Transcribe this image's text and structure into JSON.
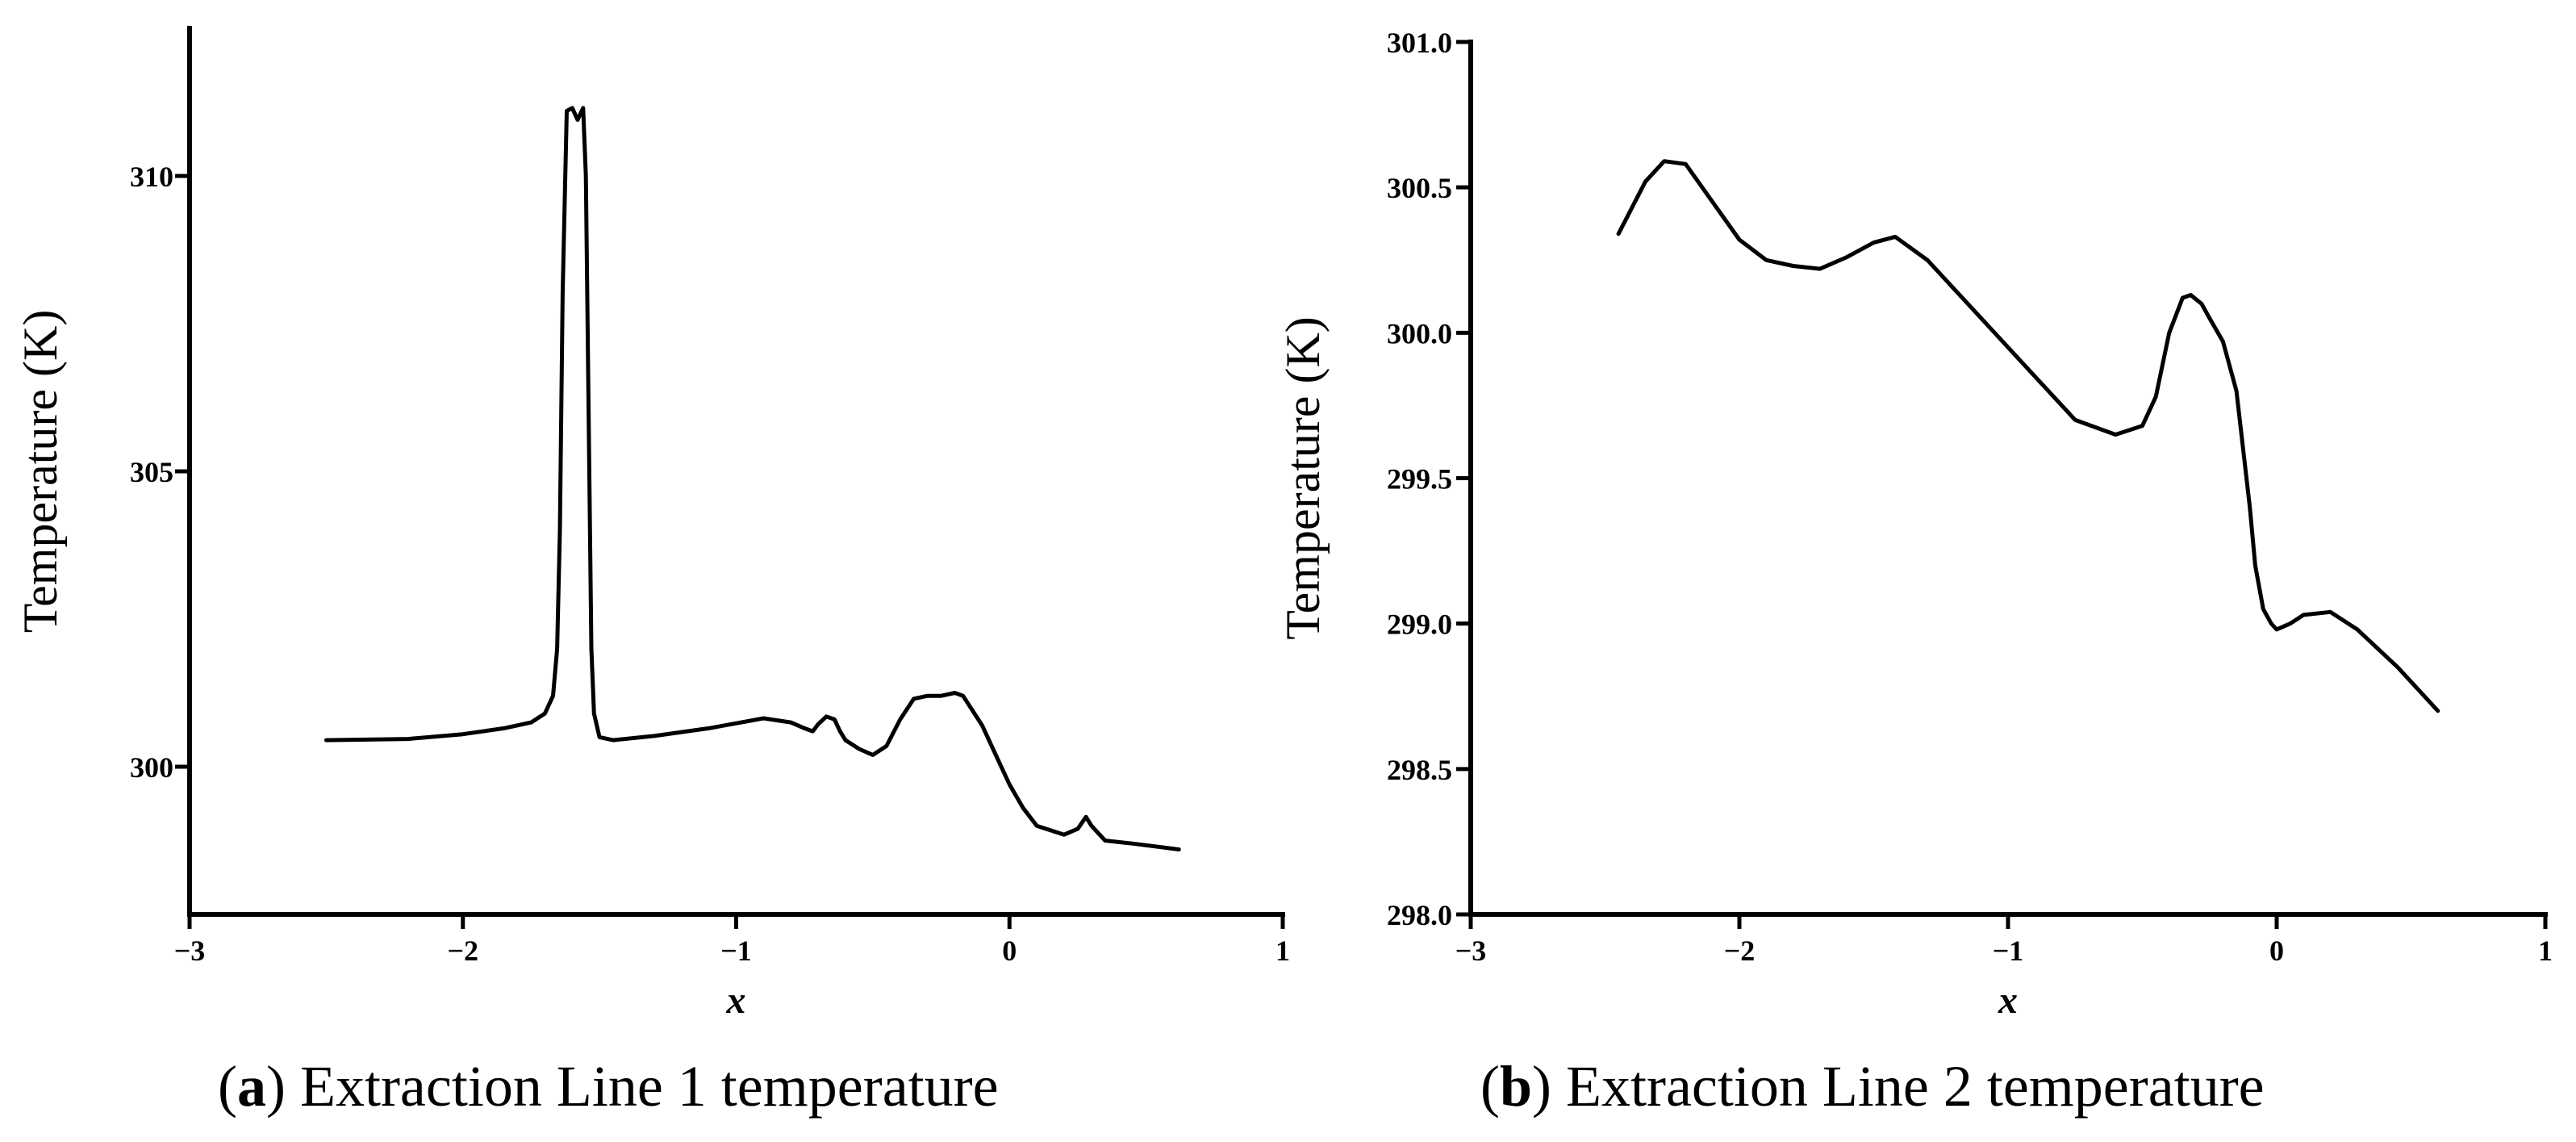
{
  "chart_data": [
    {
      "type": "line",
      "panel_letter": "a",
      "caption": "Extraction Line 1 temperature",
      "xlabel": "x",
      "ylabel": "Temperature (K)",
      "xlim": [
        -3,
        1
      ],
      "ylim": [
        297.5,
        312.5
      ],
      "x_ticks": [
        -3,
        -2,
        -1,
        0,
        1
      ],
      "x_tick_labels": [
        "−3",
        "−2",
        "−1",
        "0",
        "1"
      ],
      "y_ticks": [
        300,
        305,
        310
      ],
      "y_tick_labels": [
        "300",
        "305",
        "310"
      ],
      "grid": false,
      "series": [
        {
          "name": "Line 1",
          "x": [
            -2.5,
            -2.2,
            -2.0,
            -1.85,
            -1.75,
            -1.7,
            -1.67,
            -1.655,
            -1.645,
            -1.635,
            -1.62,
            -1.6,
            -1.58,
            -1.56,
            -1.55,
            -1.54,
            -1.53,
            -1.52,
            -1.5,
            -1.45,
            -1.3,
            -1.1,
            -0.9,
            -0.8,
            -0.75,
            -0.72,
            -0.7,
            -0.67,
            -0.64,
            -0.62,
            -0.6,
            -0.55,
            -0.5,
            -0.45,
            -0.4,
            -0.35,
            -0.3,
            -0.25,
            -0.2,
            -0.17,
            -0.1,
            -0.05,
            0.0,
            0.05,
            0.1,
            0.2,
            0.25,
            0.28,
            0.3,
            0.35,
            0.45,
            0.62
          ],
          "y": [
            300.45,
            300.47,
            300.55,
            300.65,
            300.75,
            300.9,
            301.2,
            302.0,
            304.0,
            308.0,
            311.1,
            311.15,
            310.95,
            311.15,
            310.0,
            306.0,
            302.0,
            300.9,
            300.5,
            300.45,
            300.52,
            300.65,
            300.82,
            300.75,
            300.65,
            300.6,
            300.72,
            300.85,
            300.8,
            300.6,
            300.45,
            300.3,
            300.2,
            300.35,
            300.8,
            301.15,
            301.2,
            301.2,
            301.25,
            301.2,
            300.7,
            300.2,
            299.7,
            299.3,
            299.0,
            298.85,
            298.95,
            299.15,
            299.0,
            298.75,
            298.7,
            298.6
          ]
        }
      ]
    },
    {
      "type": "line",
      "panel_letter": "b",
      "caption": "Extraction Line 2 temperature",
      "xlabel": "x",
      "ylabel": "Temperature (K)",
      "xlim": [
        -3,
        1
      ],
      "ylim": [
        298.0,
        301.0
      ],
      "x_ticks": [
        -3,
        -2,
        -1,
        0,
        1
      ],
      "x_tick_labels": [
        "−3",
        "−2",
        "−1",
        "0",
        "1"
      ],
      "y_ticks": [
        298.0,
        298.5,
        299.0,
        299.5,
        300.0,
        300.5,
        301.0
      ],
      "y_tick_labels": [
        "298.0",
        "298.5",
        "299.0",
        "299.5",
        "300.0",
        "300.5",
        "301.0"
      ],
      "grid": false,
      "series": [
        {
          "name": "Line 2",
          "x": [
            -2.45,
            -2.35,
            -2.28,
            -2.2,
            -2.1,
            -2.0,
            -1.9,
            -1.8,
            -1.7,
            -1.6,
            -1.5,
            -1.42,
            -1.3,
            -1.1,
            -0.9,
            -0.75,
            -0.6,
            -0.5,
            -0.45,
            -0.4,
            -0.35,
            -0.32,
            -0.28,
            -0.25,
            -0.2,
            -0.15,
            -0.1,
            -0.08,
            -0.05,
            -0.02,
            0.0,
            0.05,
            0.1,
            0.2,
            0.3,
            0.45,
            0.6
          ],
          "y": [
            300.34,
            300.52,
            300.59,
            300.58,
            300.45,
            300.32,
            300.25,
            300.23,
            300.22,
            300.26,
            300.31,
            300.33,
            300.25,
            300.05,
            299.85,
            299.7,
            299.65,
            299.68,
            299.78,
            300.0,
            300.12,
            300.13,
            300.1,
            300.05,
            299.97,
            299.8,
            299.4,
            299.2,
            299.05,
            299.0,
            298.98,
            299.0,
            299.03,
            299.04,
            298.98,
            298.85,
            298.7
          ]
        }
      ]
    }
  ]
}
